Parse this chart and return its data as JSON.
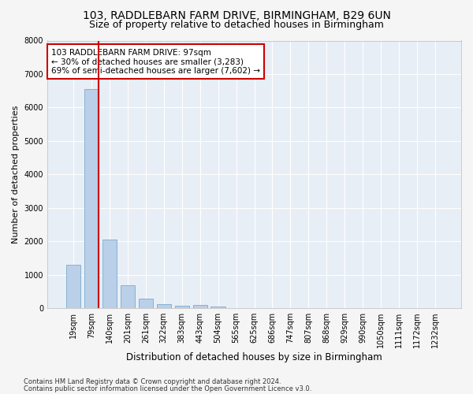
{
  "title1": "103, RADDLEBARN FARM DRIVE, BIRMINGHAM, B29 6UN",
  "title2": "Size of property relative to detached houses in Birmingham",
  "xlabel": "Distribution of detached houses by size in Birmingham",
  "ylabel": "Number of detached properties",
  "categories": [
    "19sqm",
    "79sqm",
    "140sqm",
    "201sqm",
    "261sqm",
    "322sqm",
    "383sqm",
    "443sqm",
    "504sqm",
    "565sqm",
    "625sqm",
    "686sqm",
    "747sqm",
    "807sqm",
    "868sqm",
    "929sqm",
    "990sqm",
    "1050sqm",
    "1111sqm",
    "1172sqm",
    "1232sqm"
  ],
  "values": [
    1300,
    6550,
    2050,
    680,
    290,
    120,
    70,
    100,
    50,
    0,
    0,
    0,
    0,
    0,
    0,
    0,
    0,
    0,
    0,
    0,
    0
  ],
  "bar_color": "#bad0e8",
  "bar_edge_color": "#7aaad0",
  "vline_color": "#cc0000",
  "vline_x": 1.38,
  "annotation_text": "103 RADDLEBARN FARM DRIVE: 97sqm\n← 30% of detached houses are smaller (3,283)\n69% of semi-detached houses are larger (7,602) →",
  "annotation_box_color": "#ffffff",
  "annotation_box_edge": "#cc0000",
  "ylim": [
    0,
    8000
  ],
  "yticks": [
    0,
    1000,
    2000,
    3000,
    4000,
    5000,
    6000,
    7000,
    8000
  ],
  "footnote1": "Contains HM Land Registry data © Crown copyright and database right 2024.",
  "footnote2": "Contains public sector information licensed under the Open Government Licence v3.0.",
  "plot_bg_color": "#e8eef6",
  "fig_bg_color": "#f5f5f5",
  "grid_color": "#ffffff",
  "title_fontsize": 10,
  "subtitle_fontsize": 9,
  "tick_fontsize": 7,
  "ylabel_fontsize": 8,
  "xlabel_fontsize": 8.5,
  "annot_fontsize": 7.5,
  "footnote_fontsize": 6
}
